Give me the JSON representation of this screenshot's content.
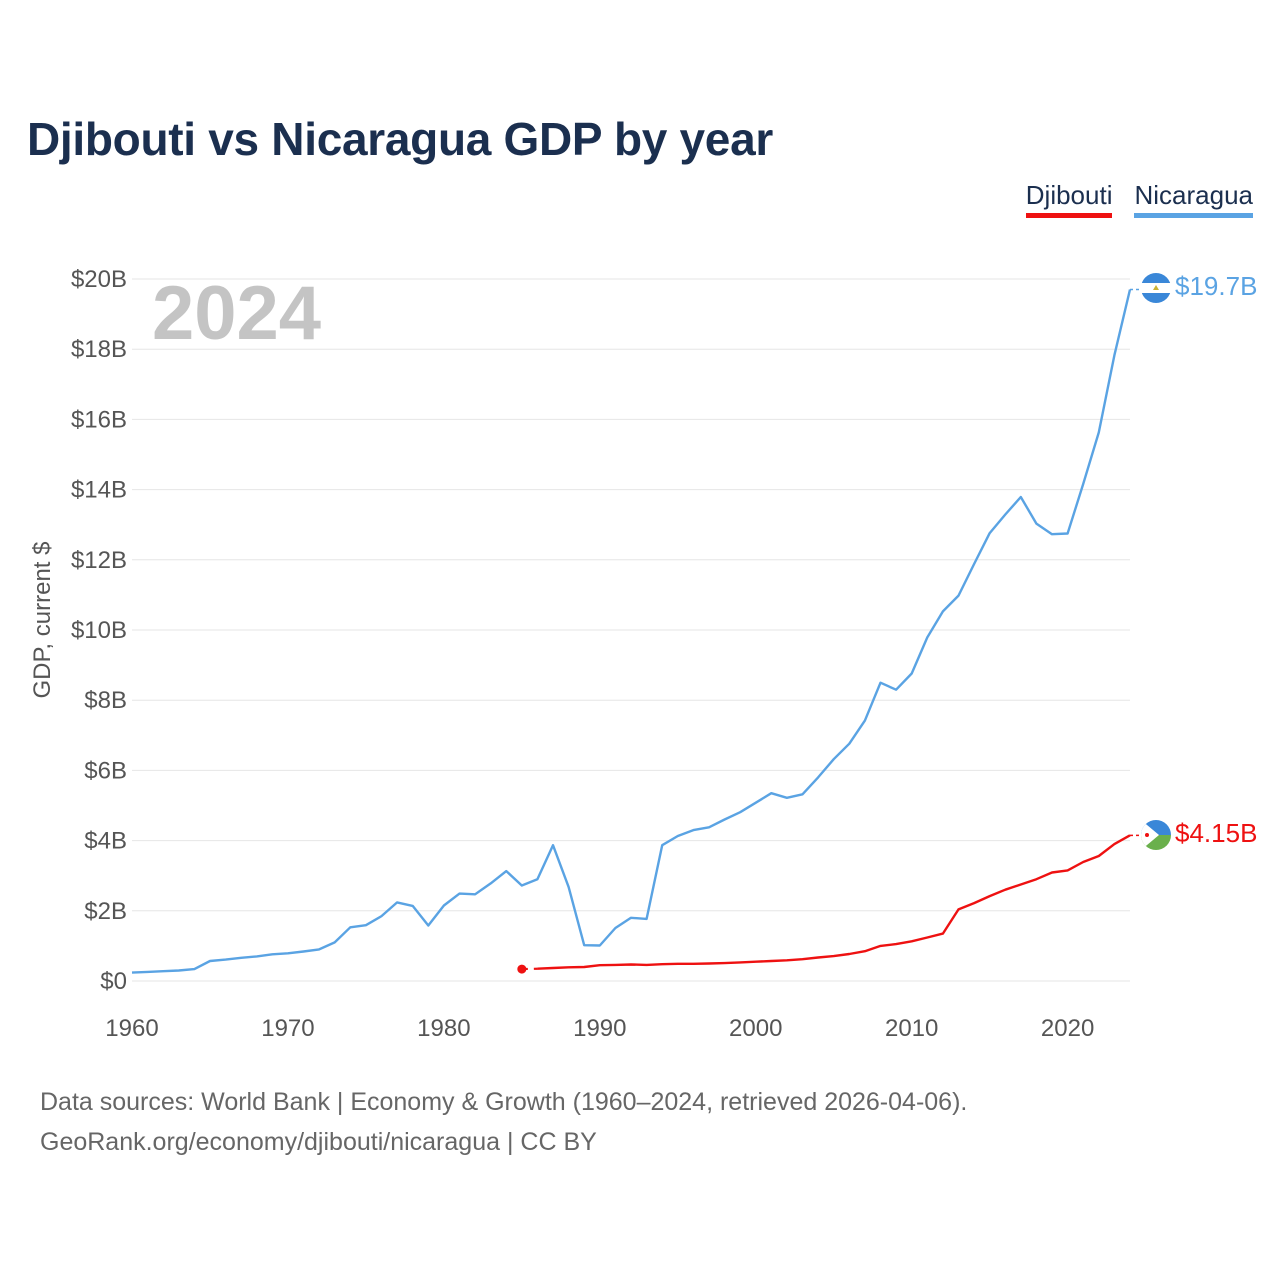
{
  "title": "Djibouti vs Nicaragua GDP by year",
  "legend": {
    "djibouti": "Djibouti",
    "nicaragua": "Nicaragua"
  },
  "year_label": "2024",
  "footer": {
    "line1": "Data sources: World Bank | Economy & Growth (1960–2024, retrieved 2026-04-06).",
    "line2": "GeoRank.org/economy/djibouti/nicaragua | CC BY"
  },
  "colors": {
    "djibouti": "#ee1111",
    "nicaragua": "#5aa3e3",
    "title": "#1b2f4f"
  },
  "icons": {
    "nicaragua_flag": "nicaragua-flag-icon",
    "djibouti_flag": "djibouti-flag-icon"
  },
  "chart_data": {
    "type": "line",
    "title": "Djibouti vs Nicaragua GDP by year",
    "xlabel": "",
    "ylabel": "GDP, current $",
    "xlim": [
      1960,
      2024
    ],
    "ylim": [
      0,
      20
    ],
    "y_unit": "billions USD",
    "x_ticks": [
      1960,
      1970,
      1980,
      1990,
      2000,
      2010,
      2020
    ],
    "y_ticks": [
      0,
      2,
      4,
      6,
      8,
      10,
      12,
      14,
      16,
      18,
      20
    ],
    "y_tick_labels": [
      "$0",
      "$2B",
      "$4B",
      "$6B",
      "$8B",
      "$10B",
      "$12B",
      "$14B",
      "$16B",
      "$18B",
      "$20B"
    ],
    "grid": true,
    "legend_position": "top-right",
    "series": [
      {
        "name": "Nicaragua",
        "end_label": "$19.7B",
        "x": [
          1960,
          1961,
          1962,
          1963,
          1964,
          1965,
          1966,
          1967,
          1968,
          1969,
          1970,
          1971,
          1972,
          1973,
          1974,
          1975,
          1976,
          1977,
          1978,
          1979,
          1980,
          1981,
          1982,
          1983,
          1984,
          1985,
          1986,
          1987,
          1988,
          1989,
          1990,
          1991,
          1992,
          1993,
          1994,
          1995,
          1996,
          1997,
          1998,
          1999,
          2000,
          2001,
          2002,
          2003,
          2004,
          2005,
          2006,
          2007,
          2008,
          2009,
          2010,
          2011,
          2012,
          2013,
          2014,
          2015,
          2016,
          2017,
          2018,
          2019,
          2020,
          2021,
          2022,
          2023,
          2024
        ],
        "values": [
          0.24,
          0.26,
          0.28,
          0.3,
          0.34,
          0.57,
          0.61,
          0.66,
          0.7,
          0.76,
          0.79,
          0.84,
          0.9,
          1.1,
          1.53,
          1.59,
          1.85,
          2.24,
          2.14,
          1.58,
          2.15,
          2.49,
          2.47,
          2.78,
          3.13,
          2.72,
          2.9,
          3.87,
          2.68,
          1.02,
          1.01,
          1.51,
          1.8,
          1.77,
          3.87,
          4.13,
          4.3,
          4.38,
          4.6,
          4.81,
          5.08,
          5.35,
          5.22,
          5.32,
          5.8,
          6.32,
          6.76,
          7.42,
          8.5,
          8.3,
          8.76,
          9.79,
          10.53,
          10.98,
          11.88,
          12.76,
          13.29,
          13.79,
          13.03,
          12.73,
          12.75,
          14.16,
          15.63,
          17.83,
          19.7
        ]
      },
      {
        "name": "Djibouti",
        "end_label": "$4.15B",
        "x": [
          1985,
          1986,
          1987,
          1988,
          1989,
          1990,
          1991,
          1992,
          1993,
          1994,
          1995,
          1996,
          1997,
          1998,
          1999,
          2000,
          2001,
          2002,
          2003,
          2004,
          2005,
          2006,
          2007,
          2008,
          2009,
          2010,
          2011,
          2012,
          2013,
          2014,
          2015,
          2016,
          2017,
          2018,
          2019,
          2020,
          2021,
          2022,
          2023,
          2024
        ],
        "values": [
          0.34,
          0.35,
          0.37,
          0.39,
          0.4,
          0.45,
          0.46,
          0.47,
          0.46,
          0.48,
          0.49,
          0.49,
          0.5,
          0.51,
          0.53,
          0.55,
          0.57,
          0.59,
          0.62,
          0.67,
          0.71,
          0.77,
          0.85,
          1.0,
          1.05,
          1.13,
          1.24,
          1.35,
          2.04,
          2.22,
          2.42,
          2.6,
          2.75,
          2.9,
          3.09,
          3.15,
          3.39,
          3.56,
          3.9,
          4.15
        ]
      }
    ]
  }
}
